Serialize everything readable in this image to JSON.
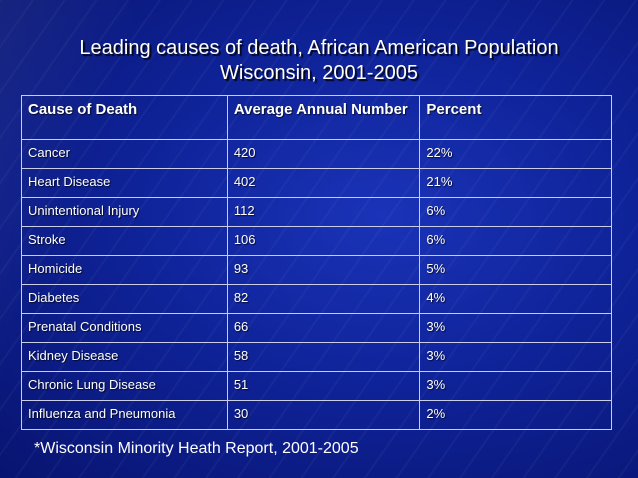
{
  "title": {
    "line1": "Leading causes of death, African American Population",
    "line2": "Wisconsin, 2001-2005"
  },
  "table": {
    "headers": [
      "Cause of Death",
      "Average Annual Number",
      "Percent"
    ],
    "rows": [
      [
        "Cancer",
        "420",
        "22%"
      ],
      [
        "Heart Disease",
        "402",
        "21%"
      ],
      [
        "Unintentional Injury",
        "112",
        "6%"
      ],
      [
        "Stroke",
        "106",
        "6%"
      ],
      [
        "Homicide",
        "93",
        "5%"
      ],
      [
        "Diabetes",
        "82",
        "4%"
      ],
      [
        "Prenatal Conditions",
        "66",
        "3%"
      ],
      [
        "Kidney Disease",
        "58",
        "3%"
      ],
      [
        "Chronic Lung Disease",
        "51",
        "3%"
      ],
      [
        "Influenza and Pneumonia",
        "30",
        "2%"
      ]
    ]
  },
  "footnote": "*Wisconsin Minority Heath Report, 2001-2005",
  "colors": {
    "background": "#0d1f8f",
    "text": "#ffffff",
    "gridline": "#c9cde6"
  }
}
